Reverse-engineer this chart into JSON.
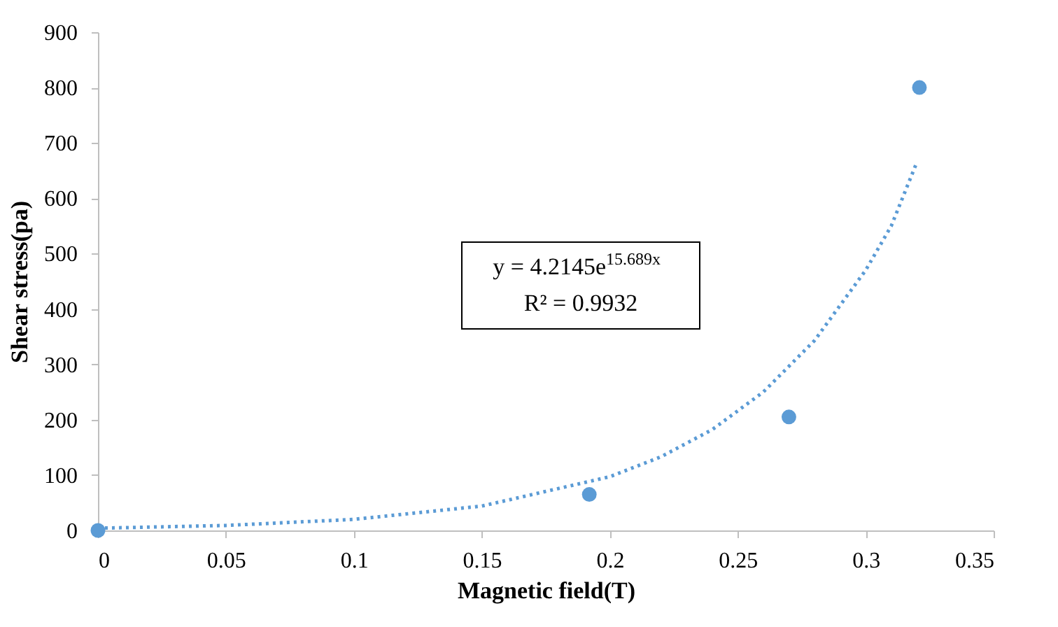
{
  "chart_data": {
    "type": "scatter",
    "xlabel": "Magnetic field(T)",
    "ylabel": "Shear stress(pa)",
    "xlim": [
      0,
      0.35
    ],
    "xticks": [
      0,
      0.05,
      0.1,
      0.15,
      0.2,
      0.25,
      0.3,
      0.35
    ],
    "ylim": [
      0,
      900
    ],
    "yticks": [
      0,
      100,
      200,
      300,
      400,
      500,
      600,
      700,
      800,
      900
    ],
    "grid": false,
    "annotations": [
      "y = 4.2145e$^{15.689x}$",
      "R² = 0.9932"
    ],
    "series": [
      {
        "type": "line",
        "color": "#5b9bd5",
        "line_style": "dotted",
        "marker": "none",
        "x": [
          0,
          0.05,
          0.1,
          0.15,
          0.2,
          0.22,
          0.24,
          0.26,
          0.28,
          0.3,
          0.31,
          0.32
        ],
        "values": [
          4,
          9,
          20,
          44,
          97,
          133,
          182,
          250,
          343,
          470,
          550,
          665
        ]
      },
      {
        "color": "#5b9bd5",
        "marker": "circle",
        "x": [
          0,
          0.192,
          0.27,
          0.321
        ],
        "values": [
          0,
          65,
          205,
          800
        ]
      }
    ]
  }
}
